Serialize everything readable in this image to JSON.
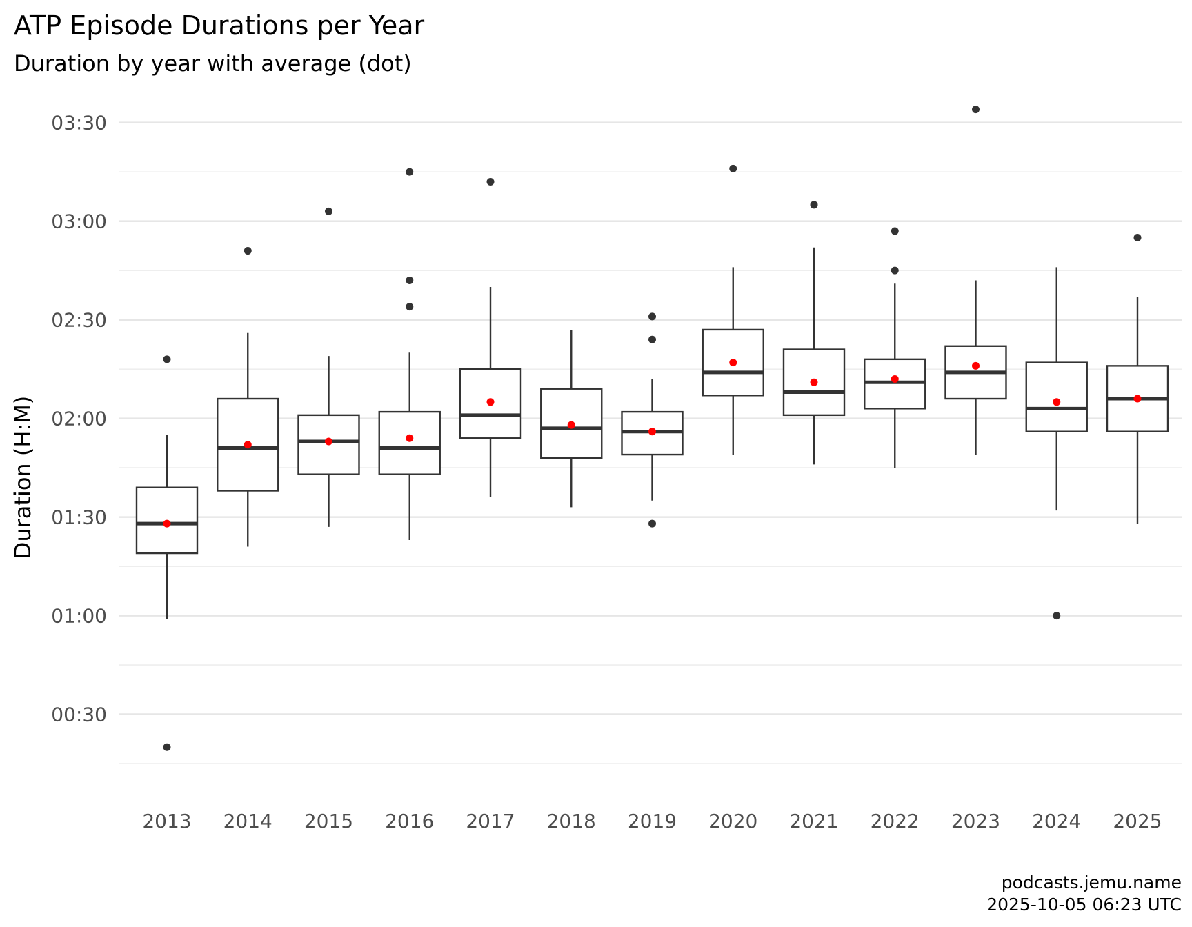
{
  "chart_data": {
    "type": "boxplot",
    "title": "ATP Episode Durations per Year",
    "subtitle": "Duration by year with average (dot)",
    "ylabel": "Duration (H:M)",
    "xlabel": "",
    "y_unit": "minutes",
    "ylim": [
      6,
      220
    ],
    "y_ticks": [
      {
        "value": 30,
        "label": "00:30"
      },
      {
        "value": 60,
        "label": "01:00"
      },
      {
        "value": 90,
        "label": "01:30"
      },
      {
        "value": 120,
        "label": "02:00"
      },
      {
        "value": 150,
        "label": "02:30"
      },
      {
        "value": 180,
        "label": "03:00"
      },
      {
        "value": 210,
        "label": "03:30"
      }
    ],
    "y_minor_ticks": [
      15,
      45,
      75,
      105,
      135,
      165,
      195
    ],
    "grid": true,
    "mean_color": "#ff0000",
    "box_color": "#333333",
    "categories": [
      "2013",
      "2014",
      "2015",
      "2016",
      "2017",
      "2018",
      "2019",
      "2020",
      "2021",
      "2022",
      "2023",
      "2024",
      "2025"
    ],
    "boxes": [
      {
        "year": "2013",
        "lower_whisker": 59,
        "q1": 79,
        "median": 88,
        "q3": 99,
        "upper_whisker": 115,
        "mean": 88,
        "outliers": [
          20,
          138
        ]
      },
      {
        "year": "2014",
        "lower_whisker": 81,
        "q1": 98,
        "median": 111,
        "q3": 126,
        "upper_whisker": 146,
        "mean": 112,
        "outliers": [
          171
        ]
      },
      {
        "year": "2015",
        "lower_whisker": 87,
        "q1": 103,
        "median": 113,
        "q3": 121,
        "upper_whisker": 139,
        "mean": 113,
        "outliers": [
          183
        ]
      },
      {
        "year": "2016",
        "lower_whisker": 83,
        "q1": 103,
        "median": 111,
        "q3": 122,
        "upper_whisker": 140,
        "mean": 114,
        "outliers": [
          154,
          162,
          195
        ]
      },
      {
        "year": "2017",
        "lower_whisker": 96,
        "q1": 114,
        "median": 121,
        "q3": 135,
        "upper_whisker": 160,
        "mean": 125,
        "outliers": [
          192
        ]
      },
      {
        "year": "2018",
        "lower_whisker": 93,
        "q1": 108,
        "median": 117,
        "q3": 129,
        "upper_whisker": 147,
        "mean": 118,
        "outliers": []
      },
      {
        "year": "2019",
        "lower_whisker": 95,
        "q1": 109,
        "median": 116,
        "q3": 122,
        "upper_whisker": 132,
        "mean": 116,
        "outliers": [
          88,
          144,
          151
        ]
      },
      {
        "year": "2020",
        "lower_whisker": 109,
        "q1": 127,
        "median": 134,
        "q3": 147,
        "upper_whisker": 166,
        "mean": 137,
        "outliers": [
          196
        ]
      },
      {
        "year": "2021",
        "lower_whisker": 106,
        "q1": 121,
        "median": 128,
        "q3": 141,
        "upper_whisker": 172,
        "mean": 131,
        "outliers": [
          185
        ]
      },
      {
        "year": "2022",
        "lower_whisker": 105,
        "q1": 123,
        "median": 131,
        "q3": 138,
        "upper_whisker": 161,
        "mean": 132,
        "outliers": [
          165,
          177
        ]
      },
      {
        "year": "2023",
        "lower_whisker": 109,
        "q1": 126,
        "median": 134,
        "q3": 142,
        "upper_whisker": 162,
        "mean": 136,
        "outliers": [
          214
        ]
      },
      {
        "year": "2024",
        "lower_whisker": 92,
        "q1": 116,
        "median": 123,
        "q3": 137,
        "upper_whisker": 166,
        "mean": 125,
        "outliers": [
          60
        ]
      },
      {
        "year": "2025",
        "lower_whisker": 88,
        "q1": 116,
        "median": 126,
        "q3": 136,
        "upper_whisker": 157,
        "mean": 126,
        "outliers": [
          175
        ]
      }
    ]
  },
  "caption": {
    "line1": "podcasts.jemu.name",
    "line2": "2025-10-05 06:23 UTC"
  }
}
